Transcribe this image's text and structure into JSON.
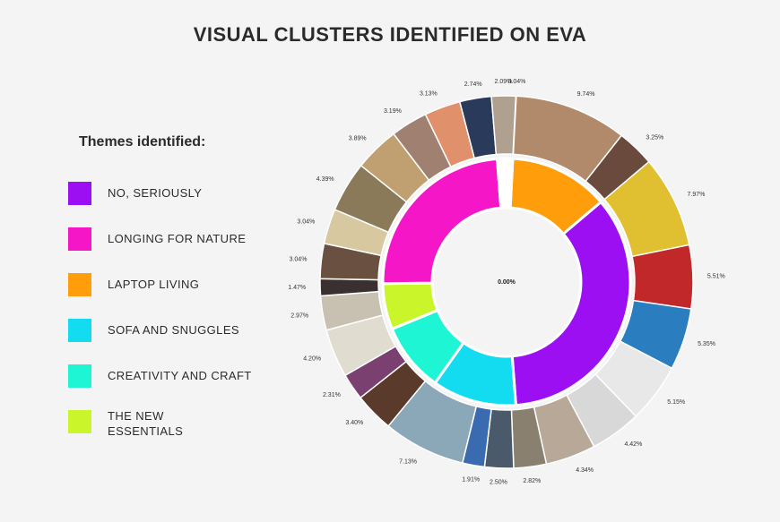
{
  "title": "VISUAL CLUSTERS IDENTIFIED ON EVA",
  "legend": {
    "title": "Themes identified:",
    "items": [
      {
        "label": "NO, SERIOUSLY",
        "color": "#9b0ff2"
      },
      {
        "label": "LONGING FOR NATURE",
        "color": "#f516c8"
      },
      {
        "label": "LAPTOP LIVING",
        "color": "#ff9e0a"
      },
      {
        "label": "SOFA AND SNUGGLES",
        "color": "#14dcf0"
      },
      {
        "label": "CREATIVITY AND CRAFT",
        "color": "#1df5d4"
      },
      {
        "label": "THE NEW\nESSENTIALS",
        "color": "#c9f52a"
      }
    ]
  },
  "chart_data": {
    "type": "pie",
    "subtype": "sunburst",
    "center_label": "0.00%",
    "inner_ring": [
      {
        "theme": "LAPTOP LIVING",
        "value": 13.0,
        "color": "#ff9e0a"
      },
      {
        "theme": "NO, SERIOUSLY",
        "value": 35.0,
        "color": "#9b0ff2"
      },
      {
        "theme": "SOFA AND SNUGGLES",
        "value": 11.0,
        "color": "#14dcf0"
      },
      {
        "theme": "CREATIVITY AND CRAFT",
        "value": 9.0,
        "color": "#1df5d4"
      },
      {
        "theme": "THE NEW ESSENTIALS",
        "value": 6.0,
        "color": "#c9f52a"
      },
      {
        "theme": "LONGING FOR NATURE",
        "value": 24.0,
        "color": "#f516c8"
      },
      {
        "theme": "",
        "value": 2.0,
        "color": "#ffffff"
      }
    ],
    "outer_ring": [
      {
        "label": "0.04%",
        "value": 0.04,
        "color": "#c8b8a0"
      },
      {
        "label": "9.74%",
        "value": 9.74,
        "color": "#b08a6a"
      },
      {
        "label": "3.25%",
        "value": 3.25,
        "color": "#6a4a3c"
      },
      {
        "label": "7.97%",
        "value": 7.97,
        "color": "#e0c030"
      },
      {
        "label": "5.51%",
        "value": 5.51,
        "color": "#c0282a"
      },
      {
        "label": "5.35%",
        "value": 5.35,
        "color": "#2a7ec0"
      },
      {
        "label": "5.15%",
        "value": 5.15,
        "color": "#e8e8e8"
      },
      {
        "label": "4.42%",
        "value": 4.42,
        "color": "#d8d8d8"
      },
      {
        "label": "4.34%",
        "value": 4.34,
        "color": "#b8a898"
      },
      {
        "label": "2.82%",
        "value": 2.82,
        "color": "#8a8070"
      },
      {
        "label": "2.50%",
        "value": 2.5,
        "color": "#4a5a6a"
      },
      {
        "label": "1.91%",
        "value": 1.91,
        "color": "#3a6ab0"
      },
      {
        "label": "7.13%",
        "value": 7.13,
        "color": "#8aa8b8"
      },
      {
        "label": "3.40%",
        "value": 3.4,
        "color": "#5a3a2a"
      },
      {
        "label": "2.31%",
        "value": 2.31,
        "color": "#7a4070"
      },
      {
        "label": "4.20%",
        "value": 4.2,
        "color": "#e0dcd0"
      },
      {
        "label": "2.97%",
        "value": 2.97,
        "color": "#c8c0b0"
      },
      {
        "label": "1.47%",
        "value": 1.47,
        "color": "#3a3030"
      },
      {
        "label": "3.04%",
        "value": 3.04,
        "color": "#6a5040"
      },
      {
        "label": "3.04%",
        "value": 3.04,
        "color": "#d8c8a0"
      },
      {
        "label": "4.39%",
        "value": 4.39,
        "color": "#8a7a5a"
      },
      {
        "label": "3.89%",
        "value": 3.89,
        "color": "#c0a070"
      },
      {
        "label": "3.19%",
        "value": 3.19,
        "color": "#a08070"
      },
      {
        "label": "3.13%",
        "value": 3.13,
        "color": "#e0906a"
      },
      {
        "label": "2.74%",
        "value": 2.74,
        "color": "#2a3a5a"
      },
      {
        "label": "2.09%",
        "value": 2.09,
        "color": "#b0a090"
      }
    ]
  }
}
